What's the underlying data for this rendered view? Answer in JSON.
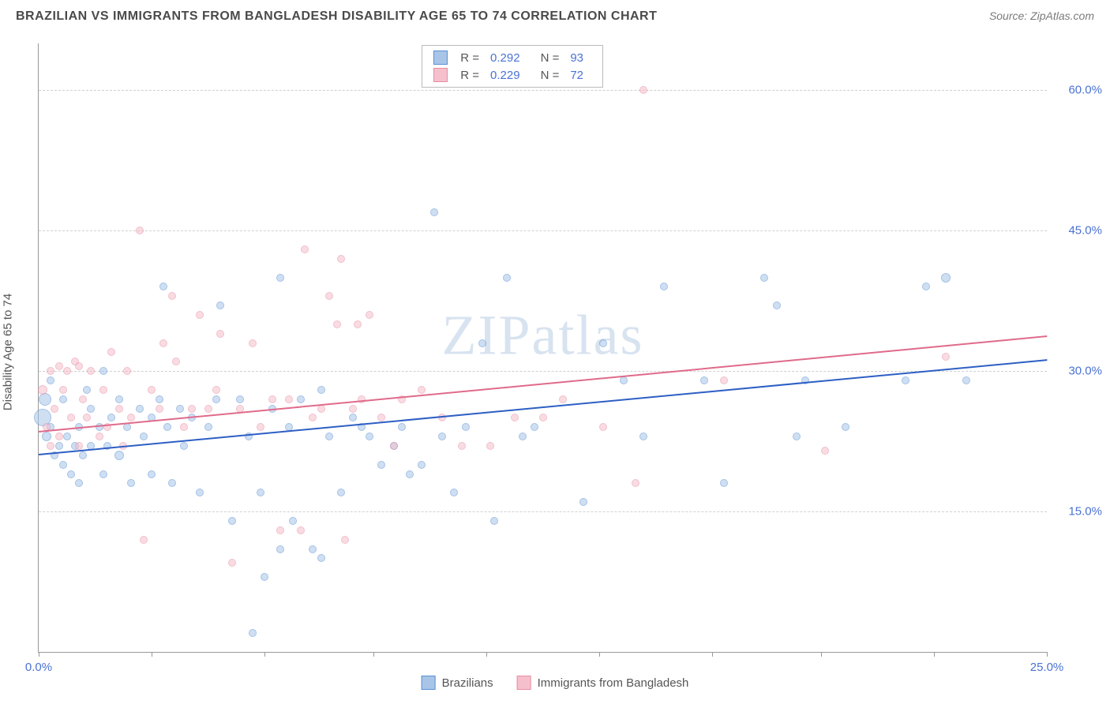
{
  "header": {
    "title": "BRAZILIAN VS IMMIGRANTS FROM BANGLADESH DISABILITY AGE 65 TO 74 CORRELATION CHART",
    "source_prefix": "Source: ",
    "source": "ZipAtlas.com"
  },
  "chart": {
    "type": "scatter",
    "ylabel": "Disability Age 65 to 74",
    "watermark": "ZIPatlas",
    "xlim": [
      0,
      25
    ],
    "ylim": [
      0,
      65
    ],
    "xticks": [
      0,
      2.8,
      5.6,
      8.3,
      11.1,
      13.9,
      16.7,
      19.4,
      22.2,
      25
    ],
    "xtick_labels": {
      "0": "0.0%",
      "25": "25.0%"
    },
    "yticks": [
      15,
      30,
      45,
      60
    ],
    "ytick_labels": [
      "15.0%",
      "30.0%",
      "45.0%",
      "60.0%"
    ],
    "grid_color": "#d0d0d0",
    "axis_color": "#999999",
    "background": "#ffffff",
    "series": [
      {
        "name": "Brazilians",
        "fill": "#a8c5e8",
        "stroke": "#5a8fd4",
        "fill_opacity": 0.55,
        "trend_color": "#2d5fc4",
        "R": "0.292",
        "N": "93",
        "trend": {
          "x1": 0,
          "y1": 21.2,
          "x2": 25,
          "y2": 31.3
        },
        "points": [
          [
            0.1,
            25,
            22
          ],
          [
            0.15,
            27,
            16
          ],
          [
            0.2,
            23,
            12
          ],
          [
            0.3,
            24,
            10
          ],
          [
            0.3,
            29,
            10
          ],
          [
            0.4,
            21,
            10
          ],
          [
            0.5,
            22,
            10
          ],
          [
            0.6,
            20,
            10
          ],
          [
            0.6,
            27,
            10
          ],
          [
            0.7,
            23,
            10
          ],
          [
            0.8,
            19,
            10
          ],
          [
            0.9,
            22,
            10
          ],
          [
            1.0,
            24,
            10
          ],
          [
            1.0,
            18,
            10
          ],
          [
            1.1,
            21,
            10
          ],
          [
            1.2,
            28,
            10
          ],
          [
            1.3,
            26,
            10
          ],
          [
            1.3,
            22,
            10
          ],
          [
            1.5,
            24,
            10
          ],
          [
            1.6,
            19,
            10
          ],
          [
            1.6,
            30,
            10
          ],
          [
            1.7,
            22,
            10
          ],
          [
            1.8,
            25,
            10
          ],
          [
            2.0,
            21,
            12
          ],
          [
            2.0,
            27,
            10
          ],
          [
            2.2,
            24,
            10
          ],
          [
            2.3,
            18,
            10
          ],
          [
            2.5,
            26,
            10
          ],
          [
            2.6,
            23,
            10
          ],
          [
            2.8,
            25,
            10
          ],
          [
            2.8,
            19,
            10
          ],
          [
            3.0,
            27,
            10
          ],
          [
            3.1,
            39,
            10
          ],
          [
            3.2,
            24,
            10
          ],
          [
            3.3,
            18,
            10
          ],
          [
            3.5,
            26,
            10
          ],
          [
            3.6,
            22,
            10
          ],
          [
            3.8,
            25,
            10
          ],
          [
            4.0,
            17,
            10
          ],
          [
            4.2,
            24,
            10
          ],
          [
            4.4,
            27,
            10
          ],
          [
            4.5,
            37,
            10
          ],
          [
            4.8,
            14,
            10
          ],
          [
            5.0,
            27,
            10
          ],
          [
            5.2,
            23,
            10
          ],
          [
            5.3,
            2,
            10
          ],
          [
            5.5,
            17,
            10
          ],
          [
            5.6,
            8,
            10
          ],
          [
            5.8,
            26,
            10
          ],
          [
            6.0,
            40,
            10
          ],
          [
            6.0,
            11,
            10
          ],
          [
            6.2,
            24,
            10
          ],
          [
            6.3,
            14,
            10
          ],
          [
            6.5,
            27,
            10
          ],
          [
            6.8,
            11,
            10
          ],
          [
            7.0,
            10,
            10
          ],
          [
            7.0,
            28,
            10
          ],
          [
            7.2,
            23,
            10
          ],
          [
            7.5,
            17,
            10
          ],
          [
            7.8,
            25,
            10
          ],
          [
            8.0,
            24,
            10
          ],
          [
            8.2,
            23,
            10
          ],
          [
            8.5,
            20,
            10
          ],
          [
            8.8,
            22,
            10
          ],
          [
            9.0,
            24,
            10
          ],
          [
            9.2,
            19,
            10
          ],
          [
            9.5,
            20,
            10
          ],
          [
            9.8,
            47,
            10
          ],
          [
            10.0,
            23,
            10
          ],
          [
            10.3,
            17,
            10
          ],
          [
            10.6,
            24,
            10
          ],
          [
            11.0,
            33,
            10
          ],
          [
            11.3,
            14,
            10
          ],
          [
            11.6,
            40,
            10
          ],
          [
            12.0,
            23,
            10
          ],
          [
            12.3,
            24,
            10
          ],
          [
            13.5,
            16,
            10
          ],
          [
            14.0,
            33,
            10
          ],
          [
            14.5,
            29,
            10
          ],
          [
            15.0,
            23,
            10
          ],
          [
            15.5,
            39,
            10
          ],
          [
            16.5,
            29,
            10
          ],
          [
            17.0,
            18,
            10
          ],
          [
            18.0,
            40,
            10
          ],
          [
            18.3,
            37,
            10
          ],
          [
            18.8,
            23,
            10
          ],
          [
            19.0,
            29,
            10
          ],
          [
            20.0,
            24,
            10
          ],
          [
            21.5,
            29,
            10
          ],
          [
            22.0,
            39,
            10
          ],
          [
            22.5,
            40,
            12
          ],
          [
            23.0,
            29,
            10
          ]
        ]
      },
      {
        "name": "Immigrants from Bangladesh",
        "fill": "#f5c0cc",
        "stroke": "#e88ca3",
        "fill_opacity": 0.55,
        "trend_color": "#e06a8a",
        "R": "0.229",
        "N": "72",
        "trend": {
          "x1": 0,
          "y1": 23.6,
          "x2": 25,
          "y2": 33.8
        },
        "points": [
          [
            0.1,
            28,
            12
          ],
          [
            0.2,
            24,
            10
          ],
          [
            0.3,
            30,
            10
          ],
          [
            0.3,
            22,
            10
          ],
          [
            0.4,
            26,
            10
          ],
          [
            0.5,
            30.5,
            10
          ],
          [
            0.5,
            23,
            10
          ],
          [
            0.6,
            28,
            10
          ],
          [
            0.7,
            30,
            10
          ],
          [
            0.8,
            25,
            10
          ],
          [
            0.9,
            31,
            10
          ],
          [
            1.0,
            22,
            10
          ],
          [
            1.0,
            30.5,
            10
          ],
          [
            1.1,
            27,
            10
          ],
          [
            1.2,
            25,
            10
          ],
          [
            1.3,
            30,
            10
          ],
          [
            1.5,
            23,
            10
          ],
          [
            1.6,
            28,
            10
          ],
          [
            1.7,
            24,
            10
          ],
          [
            1.8,
            32,
            10
          ],
          [
            2.0,
            26,
            10
          ],
          [
            2.1,
            22,
            10
          ],
          [
            2.2,
            30,
            10
          ],
          [
            2.3,
            25,
            10
          ],
          [
            2.5,
            45,
            10
          ],
          [
            2.6,
            12,
            10
          ],
          [
            2.8,
            28,
            10
          ],
          [
            3.0,
            26,
            10
          ],
          [
            3.1,
            33,
            10
          ],
          [
            3.3,
            38,
            10
          ],
          [
            3.4,
            31,
            10
          ],
          [
            3.6,
            24,
            10
          ],
          [
            3.8,
            26,
            10
          ],
          [
            4.0,
            36,
            10
          ],
          [
            4.2,
            26,
            10
          ],
          [
            4.4,
            28,
            10
          ],
          [
            4.5,
            34,
            10
          ],
          [
            4.8,
            9.5,
            10
          ],
          [
            5.0,
            26,
            10
          ],
          [
            5.3,
            33,
            10
          ],
          [
            5.5,
            24,
            10
          ],
          [
            5.8,
            27,
            10
          ],
          [
            6.0,
            13,
            10
          ],
          [
            6.2,
            27,
            10
          ],
          [
            6.5,
            13,
            10
          ],
          [
            6.6,
            43,
            10
          ],
          [
            6.8,
            25,
            10
          ],
          [
            7.0,
            26,
            10
          ],
          [
            7.2,
            38,
            10
          ],
          [
            7.5,
            42,
            10
          ],
          [
            7.6,
            12,
            10
          ],
          [
            7.8,
            26,
            10
          ],
          [
            7.9,
            35,
            10
          ],
          [
            8.0,
            27,
            10
          ],
          [
            8.2,
            36,
            10
          ],
          [
            8.5,
            25,
            10
          ],
          [
            8.8,
            22,
            10
          ],
          [
            9.0,
            27,
            10
          ],
          [
            9.5,
            28,
            10
          ],
          [
            10.0,
            25,
            10
          ],
          [
            10.5,
            22,
            10
          ],
          [
            11.2,
            22,
            10
          ],
          [
            11.8,
            25,
            10
          ],
          [
            12.5,
            25,
            10
          ],
          [
            13.0,
            27,
            10
          ],
          [
            14.0,
            24,
            10
          ],
          [
            14.8,
            18,
            10
          ],
          [
            15.0,
            60,
            10
          ],
          [
            17.0,
            29,
            10
          ],
          [
            19.5,
            21.5,
            10
          ],
          [
            22.5,
            31.5,
            10
          ],
          [
            7.4,
            35,
            10
          ]
        ]
      }
    ]
  },
  "legend_stats_labels": {
    "R": "R =",
    "N": "N ="
  }
}
